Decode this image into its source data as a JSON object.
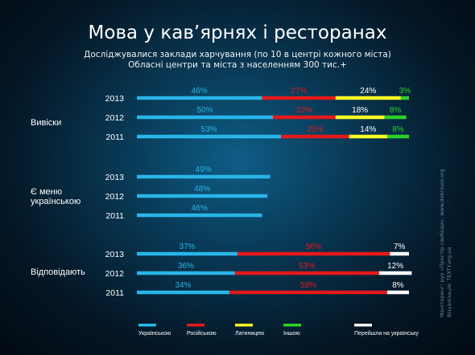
{
  "title": "Мова у кав’ярнях і ресторанах",
  "subtitle_line1": "Досліджувалися заклади харчування (по 10 в центрі кожного міста)",
  "subtitle_line2": "Обласні центри та міста з населенням 300 тис.+",
  "credits": {
    "monitoring_label": "Моніторинг:",
    "monitoring_value": "рух «Простір свободи», www.dobrovol.org",
    "visualization_label": "Візуалізація:",
    "visualization_value": "TEXTY.org.ua"
  },
  "colors": {
    "ukrainian": "#29b5e8",
    "russian": "#e3191b",
    "latin": "#fbfd24",
    "other": "#2ed12a",
    "switch": "#ffffff"
  },
  "chart_data": {
    "type": "bar",
    "orientation": "horizontal",
    "stacked": true,
    "groups": [
      {
        "label": "Вивіски",
        "rows": [
          {
            "year": "2013",
            "segments": [
              {
                "series": "Українською",
                "value": 46,
                "label": "46%"
              },
              {
                "series": "Російською",
                "value": 27,
                "label": "27%"
              },
              {
                "series": "Латиницею",
                "value": 24,
                "label": "24%"
              },
              {
                "series": "Іншою",
                "value": 3,
                "label": "3%"
              }
            ]
          },
          {
            "year": "2012",
            "segments": [
              {
                "series": "Українською",
                "value": 50,
                "label": "50%"
              },
              {
                "series": "Російською",
                "value": 23,
                "label": "23%"
              },
              {
                "series": "Латиницею",
                "value": 18,
                "label": "18%"
              },
              {
                "series": "Іншою",
                "value": 8,
                "label": "8%"
              }
            ]
          },
          {
            "year": "2011",
            "segments": [
              {
                "series": "Українською",
                "value": 53,
                "label": "53%"
              },
              {
                "series": "Російською",
                "value": 25,
                "label": "25%"
              },
              {
                "series": "Латиницею",
                "value": 14,
                "label": "14%"
              },
              {
                "series": "Іншою",
                "value": 8,
                "label": "8%"
              }
            ]
          }
        ]
      },
      {
        "label_line1": "Є  меню",
        "label_line2": "українською",
        "rows": [
          {
            "year": "2013",
            "segments": [
              {
                "series": "Українською",
                "value": 49,
                "label": "49%"
              }
            ]
          },
          {
            "year": "2012",
            "segments": [
              {
                "series": "Українською",
                "value": 48,
                "label": "48%"
              }
            ]
          },
          {
            "year": "2011",
            "segments": [
              {
                "series": "Українською",
                "value": 46,
                "label": "46%"
              }
            ]
          }
        ]
      },
      {
        "label": "Відповідають",
        "rows": [
          {
            "year": "2013",
            "segments": [
              {
                "series": "Українською",
                "value": 37,
                "label": "37%"
              },
              {
                "series": "Російською",
                "value": 56,
                "label": "56%"
              },
              {
                "series": "Перейшли на українську",
                "value": 7,
                "label": "7%"
              }
            ]
          },
          {
            "year": "2012",
            "segments": [
              {
                "series": "Українською",
                "value": 36,
                "label": "36%"
              },
              {
                "series": "Російською",
                "value": 53,
                "label": "53%"
              },
              {
                "series": "Перейшли на українську",
                "value": 12,
                "label": "12%"
              }
            ]
          },
          {
            "year": "2011",
            "segments": [
              {
                "series": "Українською",
                "value": 34,
                "label": "34%"
              },
              {
                "series": "Російською",
                "value": 58,
                "label": "58%"
              },
              {
                "series": "Перейшли на українську",
                "value": 8,
                "label": "8%"
              }
            ]
          }
        ]
      }
    ],
    "legend": [
      {
        "name": "Українською",
        "color_key": "ukrainian"
      },
      {
        "name": "Російською",
        "color_key": "russian"
      },
      {
        "name": "Латиницею",
        "color_key": "latin"
      },
      {
        "name": "Іншою",
        "color_key": "other"
      },
      {
        "name": "Перейшли на українську",
        "color_key": "switch"
      }
    ],
    "legend_position": "bottom",
    "xlim": [
      0,
      100
    ],
    "grid": false
  }
}
